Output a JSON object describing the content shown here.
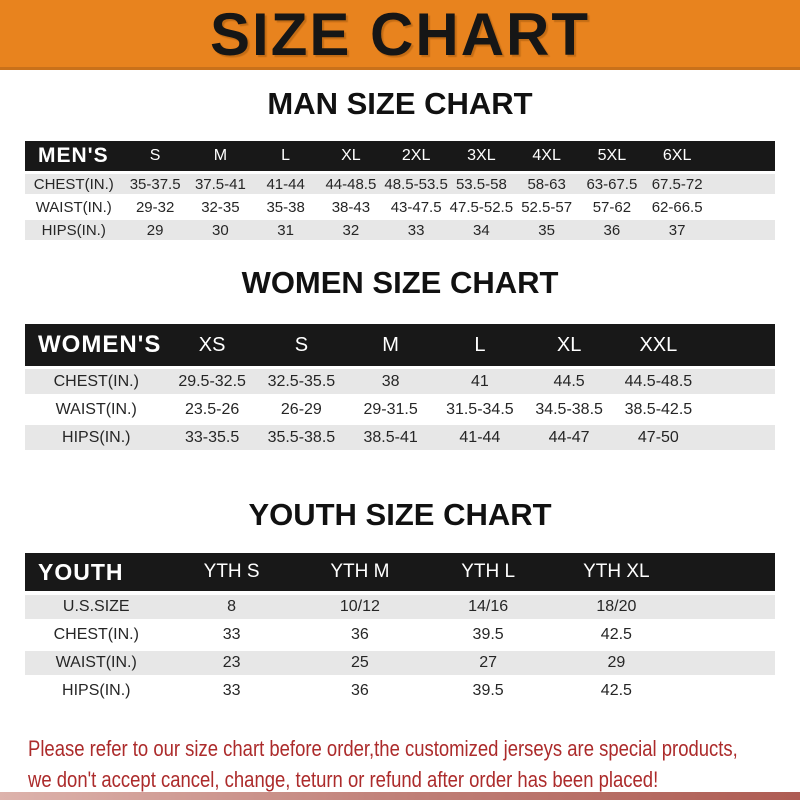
{
  "banner": {
    "title": "SIZE CHART"
  },
  "sections": {
    "men": {
      "title": "MAN SIZE CHART",
      "label": "MEN'S",
      "columns": [
        "S",
        "M",
        "L",
        "XL",
        "2XL",
        "3XL",
        "4XL",
        "5XL",
        "6XL"
      ],
      "rows": [
        {
          "label": "CHEST(IN.)",
          "values": [
            "35-37.5",
            "37.5-41",
            "41-44",
            "44-48.5",
            "48.5-53.5",
            "53.5-58",
            "58-63",
            "63-67.5",
            "67.5-72"
          ]
        },
        {
          "label": "WAIST(IN.)",
          "values": [
            "29-32",
            "32-35",
            "35-38",
            "38-43",
            "43-47.5",
            "47.5-52.5",
            "52.5-57",
            "57-62",
            "62-66.5"
          ]
        },
        {
          "label": "HIPS(IN.)",
          "values": [
            "29",
            "30",
            "31",
            "32",
            "33",
            "34",
            "35",
            "36",
            "37"
          ]
        }
      ]
    },
    "women": {
      "title": "WOMEN SIZE CHART",
      "label": "WOMEN'S",
      "columns": [
        "XS",
        "S",
        "M",
        "L",
        "XL",
        "XXL"
      ],
      "rows": [
        {
          "label": "CHEST(IN.)",
          "values": [
            "29.5-32.5",
            "32.5-35.5",
            "38",
            "41",
            "44.5",
            "44.5-48.5"
          ]
        },
        {
          "label": "WAIST(IN.)",
          "values": [
            "23.5-26",
            "26-29",
            "29-31.5",
            "31.5-34.5",
            "34.5-38.5",
            "38.5-42.5"
          ]
        },
        {
          "label": "HIPS(IN.)",
          "values": [
            "33-35.5",
            "35.5-38.5",
            "38.5-41",
            "41-44",
            "44-47",
            "47-50"
          ]
        }
      ]
    },
    "youth": {
      "title": "YOUTH SIZE CHART",
      "label": "YOUTH",
      "columns": [
        "YTH S",
        "YTH M",
        "YTH L",
        "YTH XL"
      ],
      "rows": [
        {
          "label": "U.S.SIZE",
          "values": [
            "8",
            "10/12",
            "14/16",
            "18/20"
          ]
        },
        {
          "label": "CHEST(IN.)",
          "values": [
            "33",
            "36",
            "39.5",
            "42.5"
          ]
        },
        {
          "label": "WAIST(IN.)",
          "values": [
            "23",
            "25",
            "27",
            "29"
          ]
        },
        {
          "label": "HIPS(IN.)",
          "values": [
            "33",
            "36",
            "39.5",
            "42.5"
          ]
        }
      ]
    }
  },
  "footer": {
    "line1": "Please refer to our size chart before order,the customized jerseys are special products,",
    "line2": "we don't accept cancel, change, teturn or refund after order has been placed!"
  },
  "colors": {
    "banner_bg": "#E8831E",
    "banner_border": "#C9711A",
    "table_bar_bg": "#181818",
    "row_alt_bg": "#E7E7E7",
    "footer_text": "#AC2B2B",
    "bottom_strip": "#B26057"
  }
}
